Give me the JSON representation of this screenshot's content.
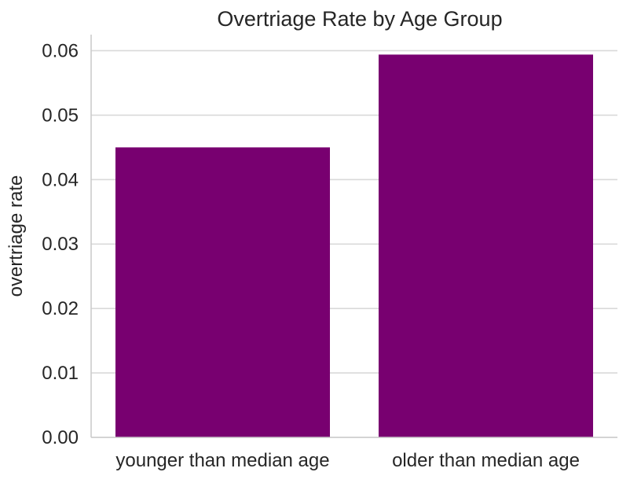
{
  "chart_data": {
    "type": "bar",
    "title": "Overtriage Rate by Age Group",
    "xlabel": "",
    "ylabel": "overtriage rate",
    "categories": [
      "younger than median age",
      "older than median age"
    ],
    "values": [
      0.045,
      0.0594
    ],
    "ylim": [
      0,
      0.0625
    ],
    "yticks": [
      0.0,
      0.01,
      0.02,
      0.03,
      0.04,
      0.05,
      0.06
    ],
    "ytick_labels": [
      "0.00",
      "0.01",
      "0.02",
      "0.03",
      "0.04",
      "0.05",
      "0.06"
    ],
    "grid": true,
    "legend": "none",
    "bar_color": "#780070"
  }
}
